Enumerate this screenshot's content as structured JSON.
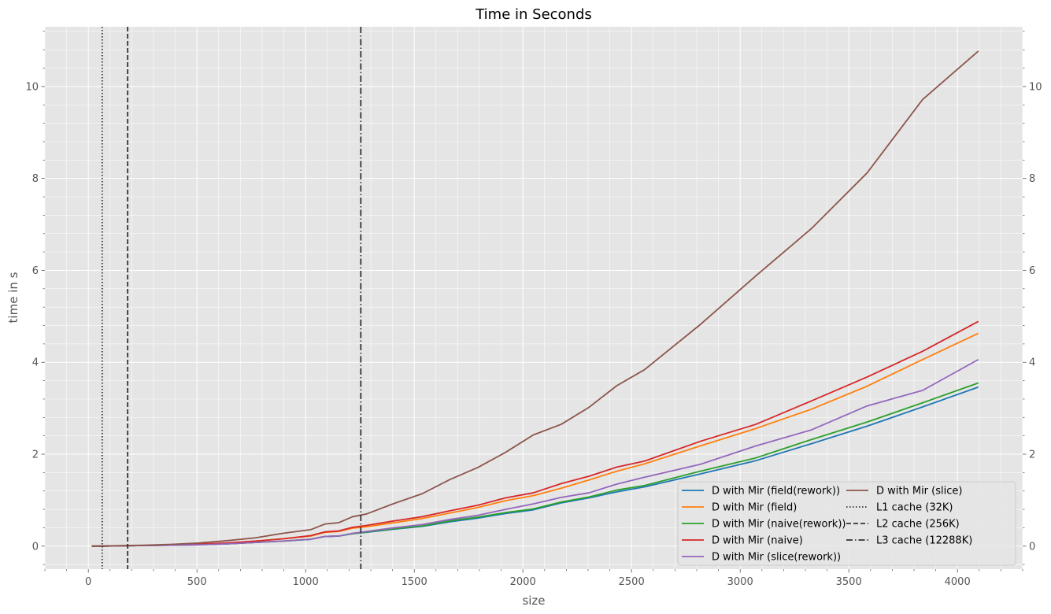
{
  "chart_data": {
    "type": "line",
    "title": "Time in Seconds",
    "xlabel": "size",
    "ylabel": "time in s",
    "xlim": [
      -200,
      4300
    ],
    "ylim": [
      -0.5,
      11.3
    ],
    "xticks": [
      0,
      500,
      1000,
      1500,
      2000,
      2500,
      3000,
      3500,
      4000
    ],
    "yticks": [
      0,
      2,
      4,
      6,
      8,
      10
    ],
    "grid": true,
    "style": "ggplot",
    "legend_position": "lower-right",
    "series": [
      {
        "name": "D with Mir (field(rework))",
        "color": "#1f77b4",
        "x": [
          16,
          64,
          128,
          192,
          256,
          384,
          512,
          640,
          768,
          896,
          1024,
          1088,
          1152,
          1216,
          1280,
          1408,
          1536,
          1664,
          1792,
          1920,
          2048,
          2176,
          2304,
          2432,
          2560,
          2816,
          3072,
          3328,
          3584,
          3840,
          4096
        ],
        "y": [
          0.0,
          0.0,
          0.005,
          0.01,
          0.015,
          0.02,
          0.03,
          0.05,
          0.08,
          0.11,
          0.15,
          0.21,
          0.22,
          0.27,
          0.3,
          0.37,
          0.43,
          0.53,
          0.61,
          0.71,
          0.79,
          0.94,
          1.05,
          1.18,
          1.29,
          1.57,
          1.86,
          2.23,
          2.61,
          3.03,
          3.46
        ]
      },
      {
        "name": "D with Mir (field)",
        "color": "#ff7f0e",
        "x": [
          16,
          64,
          128,
          192,
          256,
          384,
          512,
          640,
          768,
          896,
          1024,
          1088,
          1152,
          1216,
          1280,
          1408,
          1536,
          1664,
          1792,
          1920,
          2048,
          2176,
          2304,
          2432,
          2560,
          2816,
          3072,
          3328,
          3584,
          3840,
          4096
        ],
        "y": [
          0.0,
          0.0,
          0.005,
          0.01,
          0.015,
          0.025,
          0.045,
          0.07,
          0.11,
          0.16,
          0.22,
          0.3,
          0.32,
          0.39,
          0.42,
          0.51,
          0.6,
          0.72,
          0.84,
          0.99,
          1.1,
          1.26,
          1.44,
          1.63,
          1.79,
          2.18,
          2.56,
          2.98,
          3.48,
          4.06,
          4.63
        ]
      },
      {
        "name": "D with Mir (naive(rework))",
        "color": "#2ca02c",
        "x": [
          16,
          64,
          128,
          192,
          256,
          384,
          512,
          640,
          768,
          896,
          1024,
          1088,
          1152,
          1216,
          1280,
          1408,
          1536,
          1664,
          1792,
          1920,
          2048,
          2176,
          2304,
          2432,
          2560,
          2816,
          3072,
          3328,
          3584,
          3840,
          4096
        ],
        "y": [
          0.0,
          0.0,
          0.005,
          0.01,
          0.015,
          0.02,
          0.03,
          0.05,
          0.08,
          0.11,
          0.15,
          0.21,
          0.22,
          0.27,
          0.31,
          0.38,
          0.44,
          0.55,
          0.63,
          0.73,
          0.81,
          0.96,
          1.07,
          1.22,
          1.32,
          1.63,
          1.92,
          2.32,
          2.7,
          3.12,
          3.55
        ]
      },
      {
        "name": "D with Mir (naive)",
        "color": "#d62728",
        "x": [
          16,
          64,
          128,
          192,
          256,
          384,
          512,
          640,
          768,
          896,
          1024,
          1088,
          1152,
          1216,
          1280,
          1408,
          1536,
          1664,
          1792,
          1920,
          2048,
          2176,
          2304,
          2432,
          2560,
          2816,
          3072,
          3328,
          3584,
          3840,
          4096
        ],
        "y": [
          0.0,
          0.0,
          0.005,
          0.01,
          0.015,
          0.025,
          0.045,
          0.07,
          0.11,
          0.16,
          0.23,
          0.31,
          0.33,
          0.41,
          0.45,
          0.55,
          0.64,
          0.77,
          0.89,
          1.05,
          1.16,
          1.36,
          1.52,
          1.72,
          1.85,
          2.28,
          2.65,
          3.16,
          3.68,
          4.24,
          4.89
        ]
      },
      {
        "name": "D with Mir (slice(rework))",
        "color": "#9467bd",
        "x": [
          16,
          64,
          128,
          192,
          256,
          384,
          512,
          640,
          768,
          896,
          1024,
          1088,
          1152,
          1216,
          1280,
          1408,
          1536,
          1664,
          1792,
          1920,
          2048,
          2176,
          2304,
          2432,
          2560,
          2816,
          3072,
          3328,
          3584,
          3840,
          4096
        ],
        "y": [
          0.0,
          0.0,
          0.005,
          0.01,
          0.015,
          0.02,
          0.03,
          0.05,
          0.08,
          0.11,
          0.15,
          0.21,
          0.22,
          0.28,
          0.32,
          0.4,
          0.47,
          0.58,
          0.67,
          0.8,
          0.92,
          1.06,
          1.16,
          1.35,
          1.5,
          1.78,
          2.18,
          2.53,
          3.05,
          3.39,
          4.06
        ]
      },
      {
        "name": "D with Mir (slice)",
        "color": "#8c564b",
        "x": [
          16,
          64,
          128,
          192,
          256,
          384,
          512,
          640,
          768,
          896,
          1024,
          1088,
          1152,
          1216,
          1280,
          1408,
          1536,
          1664,
          1792,
          1920,
          2048,
          2176,
          2304,
          2432,
          2560,
          2816,
          3072,
          3328,
          3584,
          3840,
          4096
        ],
        "y": [
          0.0,
          0.0,
          0.01,
          0.015,
          0.02,
          0.04,
          0.07,
          0.12,
          0.18,
          0.28,
          0.36,
          0.48,
          0.51,
          0.64,
          0.7,
          0.93,
          1.14,
          1.45,
          1.71,
          2.04,
          2.42,
          2.65,
          3.02,
          3.49,
          3.84,
          4.82,
          5.88,
          6.91,
          8.12,
          9.72,
          10.77
        ]
      },
      {
        "name": "L1 cache (32K)",
        "color": "#333333",
        "type": "vline",
        "dash": "dotted",
        "x": 64
      },
      {
        "name": "L2 cache (256K)",
        "color": "#333333",
        "type": "vline",
        "dash": "dashed",
        "x": 181
      },
      {
        "name": "L3 cache (12288K)",
        "color": "#333333",
        "type": "vline",
        "dash": "dashdot",
        "x": 1254
      }
    ]
  }
}
